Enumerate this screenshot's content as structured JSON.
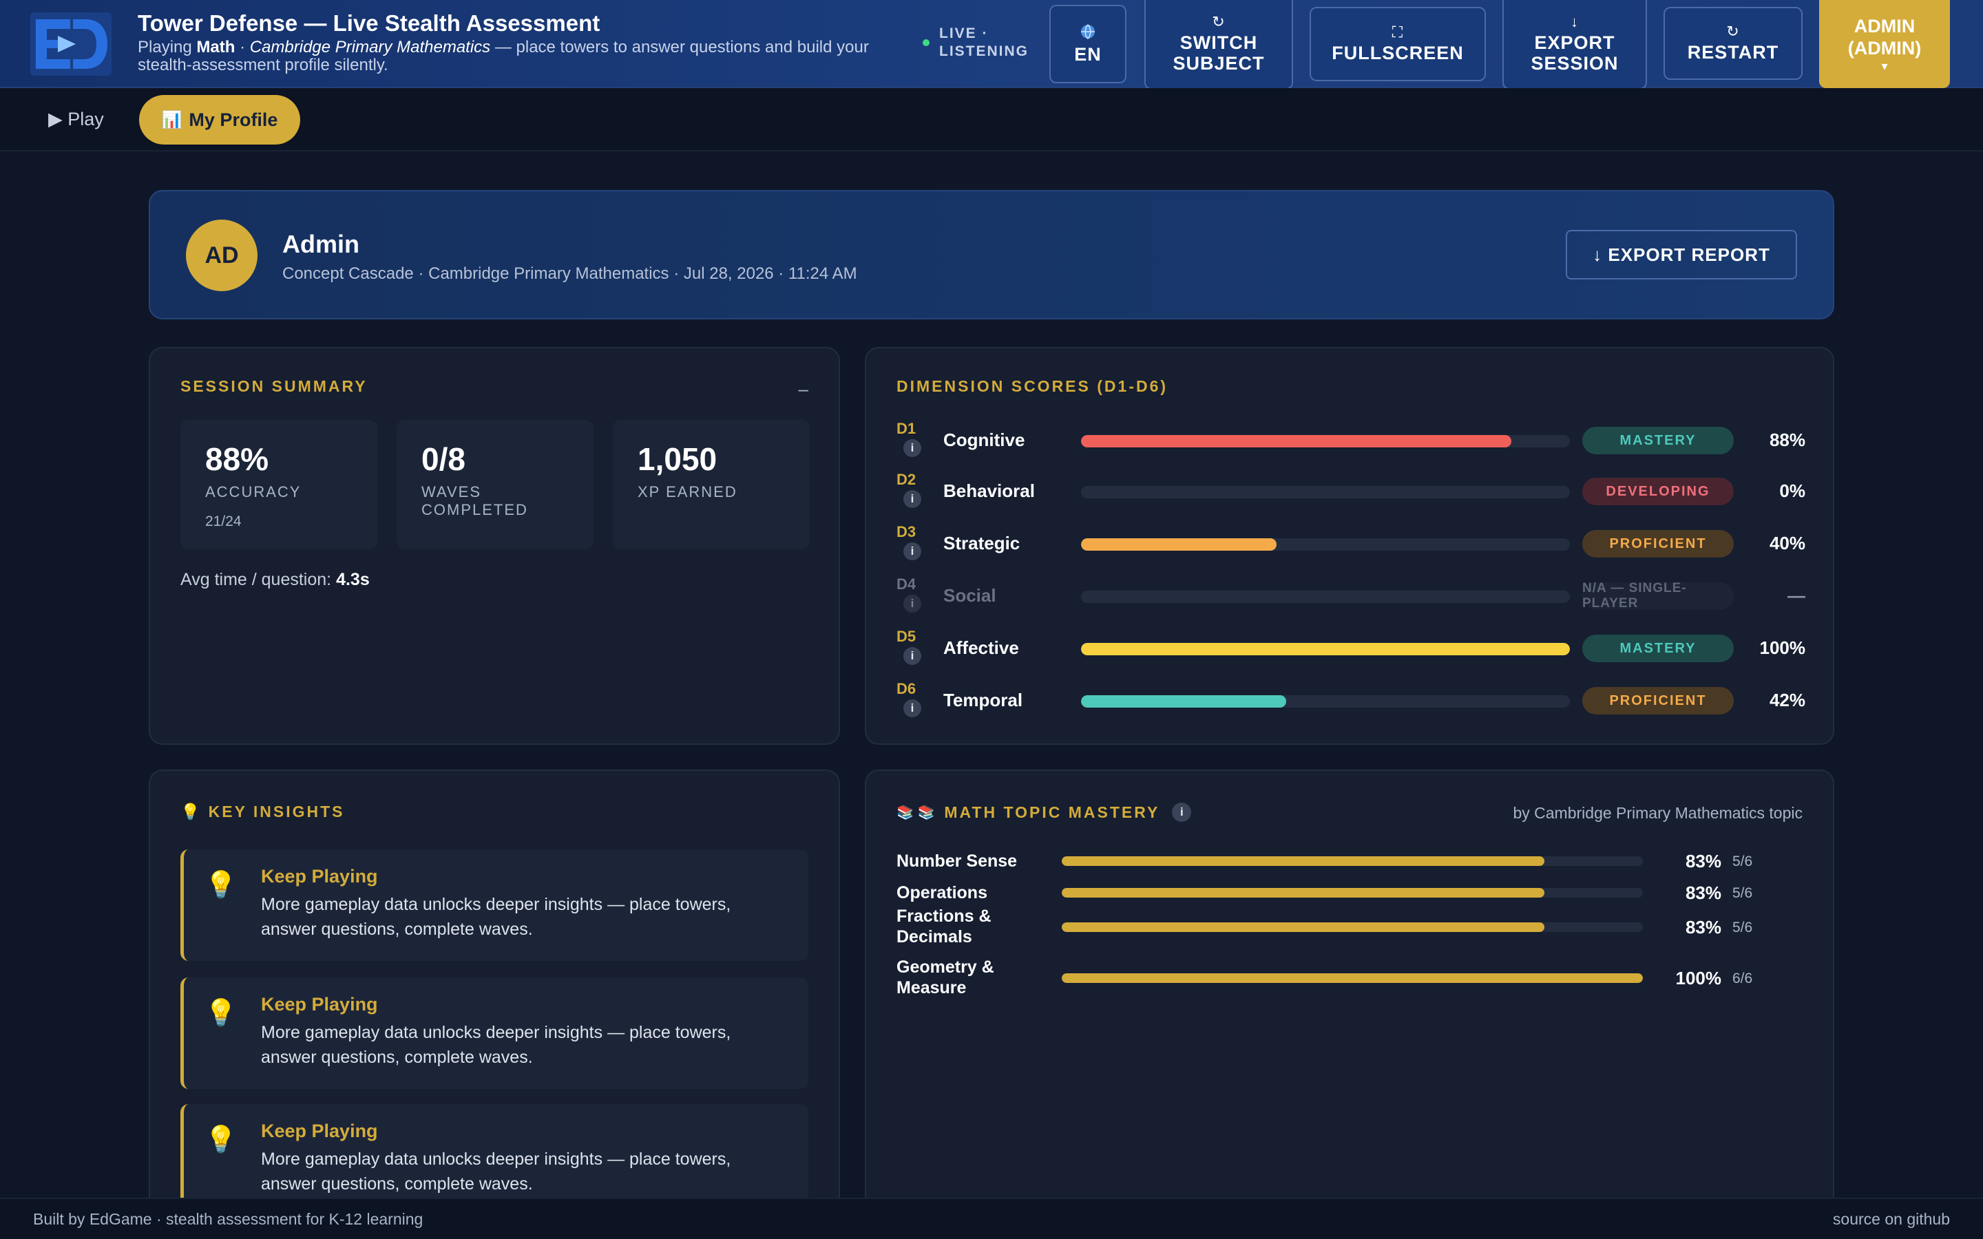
{
  "header": {
    "title": "Tower Defense — Live Stealth Assessment",
    "sub_prefix": "Playing",
    "sub_subject": "Math",
    "sub_sep": "·",
    "sub_curriculum": "Cambridge Primary Mathematics",
    "sub_suffix": "— place towers to answer questions and build your stealth-assessment profile silently.",
    "live_label": "LIVE · LISTENING",
    "lang_label": "EN",
    "switch_label": "SWITCH SUBJECT",
    "fullscreen_label": "FULLSCREEN",
    "export_label": "EXPORT SESSION",
    "restart_label": "RESTART",
    "admin_label": "ADMIN (ADMIN)",
    "admin_caret": "▾"
  },
  "nav": {
    "play_label": "▶ Play",
    "profile_label": "My Profile"
  },
  "profile": {
    "initials": "AD",
    "name": "Admin",
    "meta": "Concept Cascade · Cambridge Primary Mathematics · Jul 28, 2026 · 11:24 AM",
    "export_label": "↓ EXPORT REPORT"
  },
  "summary": {
    "title": "SESSION SUMMARY",
    "collapse": "–",
    "stats": [
      {
        "value": "88%",
        "label": "ACCURACY",
        "sub": "21/24"
      },
      {
        "value": "0/8",
        "label": "WAVES COMPLETED",
        "sub": ""
      },
      {
        "value": "1,050",
        "label": "XP EARNED",
        "sub": ""
      }
    ],
    "avg_label": "Avg time / question:",
    "avg_value": "4.3s"
  },
  "dimensions": {
    "title": "DIMENSION SCORES (D1-D6)",
    "info": "i",
    "items": [
      {
        "code": "D1",
        "name": "Cognitive",
        "score": 0.88,
        "fill": "#f0605a",
        "badge": "MASTERY",
        "badge_bg": "#1f4a4a",
        "badge_fg": "#4ec9bb",
        "pct": "88%",
        "muted": false
      },
      {
        "code": "D2",
        "name": "Behavioral",
        "score": 0.0,
        "fill": "#f0605a",
        "badge": "DEVELOPING",
        "badge_bg": "#4a2530",
        "badge_fg": "#f0707a",
        "pct": "0%",
        "muted": false
      },
      {
        "code": "D3",
        "name": "Strategic",
        "score": 0.4,
        "fill": "#f5aa4a",
        "badge": "PROFICIENT",
        "badge_bg": "#4a3a24",
        "badge_fg": "#f5aa4a",
        "pct": "40%",
        "muted": false
      },
      {
        "code": "D4",
        "name": "Social",
        "score": 0.0,
        "fill": "#3a4358",
        "badge": "N/A — SINGLE-PLAYER",
        "badge_bg": "#1c2436",
        "badge_fg": "#5f6778",
        "pct": "—",
        "muted": true
      },
      {
        "code": "D5",
        "name": "Affective",
        "score": 1.0,
        "fill": "#f7d23e",
        "badge": "MASTERY",
        "badge_bg": "#1f4a4a",
        "badge_fg": "#4ec9bb",
        "pct": "100%",
        "muted": false
      },
      {
        "code": "D6",
        "name": "Temporal",
        "score": 0.42,
        "fill": "#4ec9bb",
        "badge": "PROFICIENT",
        "badge_bg": "#4a3a24",
        "badge_fg": "#f5aa4a",
        "pct": "42%",
        "muted": false
      }
    ]
  },
  "insights": {
    "title": "KEY INSIGHTS",
    "icon": "bulb-icon",
    "items": [
      {
        "title": "Keep Playing",
        "text": "More gameplay data unlocks deeper insights — place towers, answer questions, complete waves."
      },
      {
        "title": "Keep Playing",
        "text": "More gameplay data unlocks deeper insights — place towers, answer questions, complete waves."
      },
      {
        "title": "Keep Playing",
        "text": "More gameplay data unlocks deeper insights — place towers, answer questions, complete waves."
      }
    ]
  },
  "topics": {
    "title": "MATH TOPIC MASTERY",
    "info": "i",
    "subtitle": "by Cambridge Primary Mathematics topic",
    "items": [
      {
        "name": "Number Sense",
        "score": 0.83,
        "pct": "83%",
        "frac": "5/6"
      },
      {
        "name": "Operations",
        "score": 0.83,
        "pct": "83%",
        "frac": "5/6"
      },
      {
        "name": "Fractions & Decimals",
        "score": 0.83,
        "pct": "83%",
        "frac": "5/6"
      },
      {
        "name": "Geometry & Measure",
        "score": 1.0,
        "pct": "100%",
        "frac": "6/6"
      }
    ]
  },
  "footer": {
    "left": "Built by EdGame · stealth assessment for K-12 learning",
    "right": "source on github"
  }
}
